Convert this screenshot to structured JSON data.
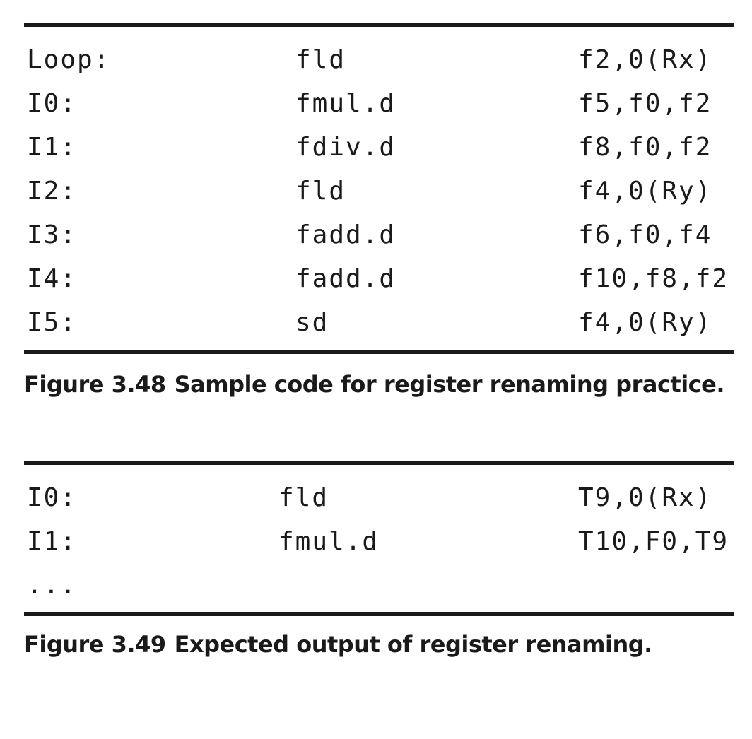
{
  "figure1": {
    "rows": [
      {
        "label": "Loop:",
        "op": "fld",
        "args": "f2,0(Rx)"
      },
      {
        "label": "I0:",
        "op": "fmul.d",
        "args": "f5,f0,f2"
      },
      {
        "label": "I1:",
        "op": "fdiv.d",
        "args": "f8,f0,f2"
      },
      {
        "label": "I2:",
        "op": "fld",
        "args": "f4,0(Ry)"
      },
      {
        "label": "I3:",
        "op": "fadd.d",
        "args": "f6,f0,f4"
      },
      {
        "label": "I4:",
        "op": "fadd.d",
        "args": "f10,f8,f2"
      },
      {
        "label": "I5:",
        "op": "sd",
        "args": "f4,0(Ry)"
      }
    ],
    "caption_number": "Figure 3.48",
    "caption_text": "Sample code for register renaming practice."
  },
  "figure2": {
    "rows": [
      {
        "label": "I0:",
        "op": "fld",
        "args": "T9,0(Rx)"
      },
      {
        "label": "I1:",
        "op": "fmul.d",
        "args": "T10,F0,T9"
      },
      {
        "label": "...",
        "op": "",
        "args": ""
      }
    ],
    "caption_number": "Figure 3.49",
    "caption_text": "Expected output of register renaming."
  }
}
